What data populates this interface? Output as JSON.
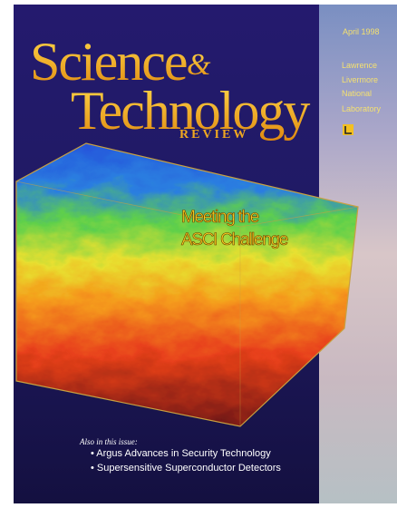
{
  "masthead": {
    "title_line1": "Science",
    "ampersand": "&",
    "title_line2": "Technology",
    "subtitle": "REVIEW"
  },
  "issue_date": "April 1998",
  "publisher": {
    "lines": [
      "Lawrence",
      "Livermore",
      "National",
      "Laboratory"
    ]
  },
  "cover_story": {
    "lines": [
      "Meeting the",
      "ASCI Challenge"
    ]
  },
  "also_in_issue": {
    "heading": "Also in this issue:",
    "items": [
      "• Argus Advances in Security Technology",
      "• Supersensitive Superconductor Detectors"
    ]
  }
}
